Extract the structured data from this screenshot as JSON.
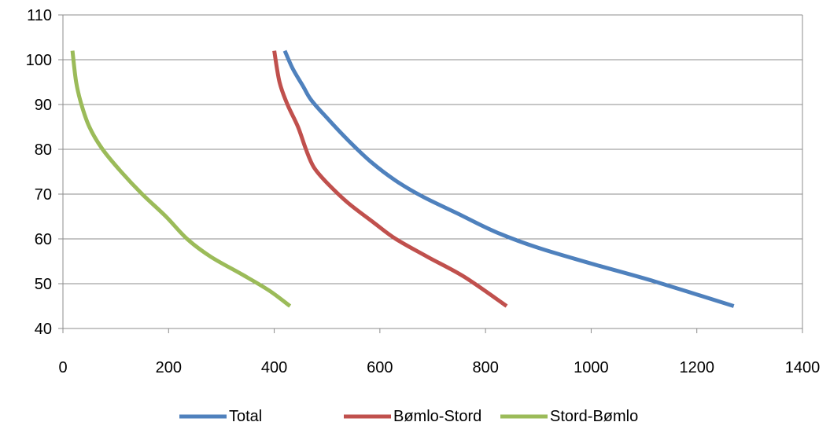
{
  "chart_data": {
    "type": "line",
    "title": "",
    "xlabel": "",
    "ylabel": "",
    "xlim": [
      0,
      1400
    ],
    "ylim": [
      40,
      110
    ],
    "x_ticks": [
      0,
      200,
      400,
      600,
      800,
      1000,
      1200,
      1400
    ],
    "y_ticks": [
      40,
      50,
      60,
      70,
      80,
      90,
      100,
      110
    ],
    "grid": "horizontal",
    "legend_position": "bottom",
    "series": [
      {
        "name": "Total",
        "color": "#4f81bd",
        "points": [
          {
            "x": 420,
            "y": 102
          },
          {
            "x": 435,
            "y": 98
          },
          {
            "x": 455,
            "y": 94
          },
          {
            "x": 470,
            "y": 91
          },
          {
            "x": 500,
            "y": 87
          },
          {
            "x": 540,
            "y": 82
          },
          {
            "x": 585,
            "y": 77
          },
          {
            "x": 630,
            "y": 73
          },
          {
            "x": 680,
            "y": 69.5
          },
          {
            "x": 750,
            "y": 65.5
          },
          {
            "x": 820,
            "y": 61.5
          },
          {
            "x": 900,
            "y": 58
          },
          {
            "x": 1000,
            "y": 54.5
          },
          {
            "x": 1120,
            "y": 50.5
          },
          {
            "x": 1270,
            "y": 45
          }
        ]
      },
      {
        "name": "Bømlo-Stord",
        "color": "#c0504d",
        "points": [
          {
            "x": 400,
            "y": 102
          },
          {
            "x": 410,
            "y": 95
          },
          {
            "x": 425,
            "y": 90
          },
          {
            "x": 445,
            "y": 85
          },
          {
            "x": 460,
            "y": 80
          },
          {
            "x": 475,
            "y": 76
          },
          {
            "x": 500,
            "y": 72.5
          },
          {
            "x": 540,
            "y": 68
          },
          {
            "x": 590,
            "y": 63.5
          },
          {
            "x": 630,
            "y": 60
          },
          {
            "x": 690,
            "y": 56
          },
          {
            "x": 760,
            "y": 51.5
          },
          {
            "x": 840,
            "y": 45
          }
        ]
      },
      {
        "name": "Stord-Bømlo",
        "color": "#9bbb59",
        "points": [
          {
            "x": 18,
            "y": 102
          },
          {
            "x": 25,
            "y": 95
          },
          {
            "x": 35,
            "y": 90
          },
          {
            "x": 50,
            "y": 85
          },
          {
            "x": 75,
            "y": 80
          },
          {
            "x": 110,
            "y": 75
          },
          {
            "x": 150,
            "y": 70
          },
          {
            "x": 195,
            "y": 65
          },
          {
            "x": 235,
            "y": 60
          },
          {
            "x": 280,
            "y": 56
          },
          {
            "x": 340,
            "y": 52
          },
          {
            "x": 390,
            "y": 48.5
          },
          {
            "x": 430,
            "y": 45
          }
        ]
      }
    ]
  }
}
